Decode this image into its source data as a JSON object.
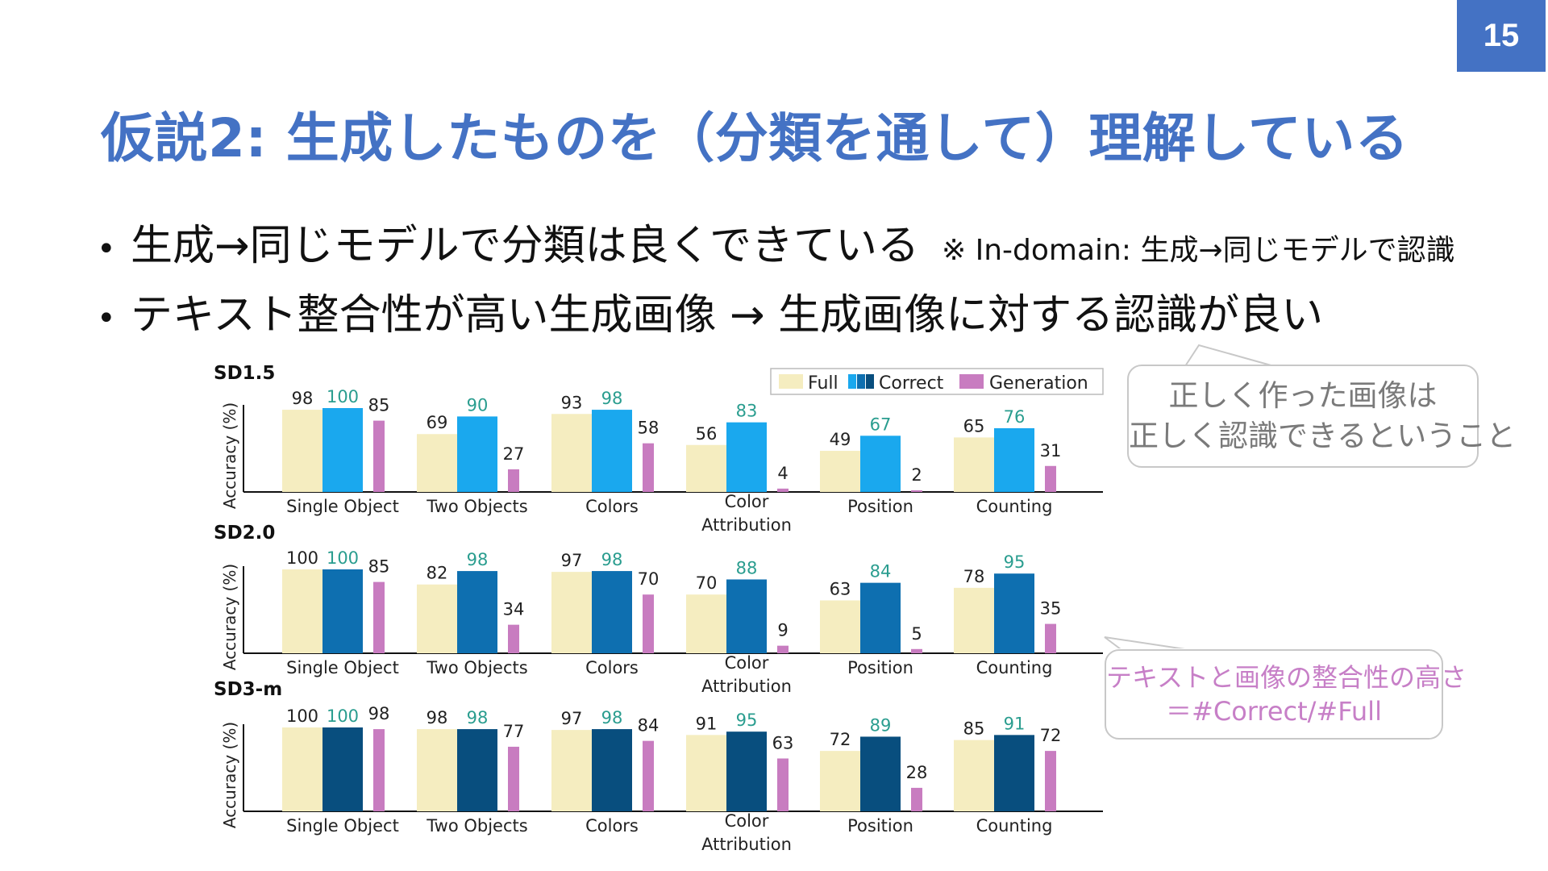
{
  "page_number": "15",
  "title": "仮説2: 生成したものを（分類を通して）理解している",
  "bullets": [
    {
      "marker": "•",
      "text": "生成→同じモデルで分類は良くできている",
      "note": "※ In-domain: 生成→同じモデルで認識"
    },
    {
      "marker": "•",
      "text": "テキスト整合性が高い生成画像 → 生成画像に対する認識が良い",
      "note": ""
    }
  ],
  "callouts": [
    {
      "lines": [
        "正しく作った画像は",
        "正しく認識できるということ"
      ]
    },
    {
      "lines": [
        "テキストと画像の整合性の高さ",
        "＝#Correct/#Full"
      ]
    }
  ],
  "chart_data": [
    {
      "type": "bar",
      "title": "SD1.5",
      "ylabel": "Accuracy (%)",
      "ylim": [
        0,
        100
      ],
      "legend": {
        "placement": "top-right",
        "entries": [
          "Full",
          "Correct",
          "Generation"
        ]
      },
      "categories": [
        "Single Object",
        "Two Objects",
        "Colors",
        "Color Attribution",
        "Position",
        "Counting"
      ],
      "series": [
        {
          "name": "Full",
          "values": [
            98,
            69,
            93,
            56,
            49,
            65
          ]
        },
        {
          "name": "Correct",
          "values": [
            100,
            90,
            98,
            83,
            67,
            76
          ]
        },
        {
          "name": "Generation",
          "values": [
            85,
            27,
            58,
            4,
            2,
            31
          ]
        }
      ]
    },
    {
      "type": "bar",
      "title": "SD2.0",
      "ylabel": "Accuracy (%)",
      "ylim": [
        0,
        100
      ],
      "categories": [
        "Single Object",
        "Two Objects",
        "Colors",
        "Color Attribution",
        "Position",
        "Counting"
      ],
      "series": [
        {
          "name": "Full",
          "values": [
            100,
            82,
            97,
            70,
            63,
            78
          ]
        },
        {
          "name": "Correct",
          "values": [
            100,
            98,
            98,
            88,
            84,
            95
          ]
        },
        {
          "name": "Generation",
          "values": [
            85,
            34,
            70,
            9,
            5,
            35
          ]
        }
      ]
    },
    {
      "type": "bar",
      "title": "SD3-m",
      "ylabel": "Accuracy (%)",
      "ylim": [
        0,
        100
      ],
      "categories": [
        "Single Object",
        "Two Objects",
        "Colors",
        "Color Attribution",
        "Position",
        "Counting"
      ],
      "series": [
        {
          "name": "Full",
          "values": [
            100,
            98,
            97,
            91,
            72,
            85
          ]
        },
        {
          "name": "Correct",
          "values": [
            100,
            98,
            98,
            95,
            89,
            91
          ]
        },
        {
          "name": "Generation",
          "values": [
            98,
            77,
            84,
            63,
            28,
            72
          ]
        }
      ]
    }
  ],
  "colors": {
    "full": "#f5edc0",
    "correct": [
      "#1aa8ee",
      "#0e6fb0",
      "#084e7e"
    ],
    "generation": "#c87cc0",
    "correct_label": "#2a9d8f",
    "title": "#4472c4"
  }
}
